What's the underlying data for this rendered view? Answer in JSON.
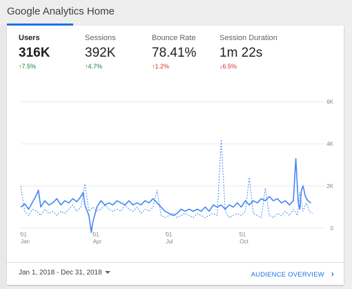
{
  "header": {
    "title": "Google Analytics Home"
  },
  "metrics": [
    {
      "label": "Users",
      "value": "316K",
      "change": "7.5%",
      "direction": "up",
      "color": "#188038",
      "active": true
    },
    {
      "label": "Sessions",
      "value": "392K",
      "change": "4.7%",
      "direction": "up",
      "color": "#188038",
      "active": false
    },
    {
      "label": "Bounce Rate",
      "value": "78.41%",
      "change": "1.2%",
      "direction": "up",
      "color": "#d93025",
      "active": false
    },
    {
      "label": "Session Duration",
      "value": "1m 22s",
      "change": "6.5%",
      "direction": "down",
      "color": "#d93025",
      "active": false
    }
  ],
  "footer": {
    "date_range": "Jan 1, 2018 - Dec 31, 2018",
    "overview_link": "AUDIENCE OVERVIEW"
  },
  "chart_data": {
    "type": "line",
    "x_ticks": [
      {
        "day": "01",
        "month": "Jan",
        "index": 0
      },
      {
        "day": "01",
        "month": "Apr",
        "index": 90
      },
      {
        "day": "01",
        "month": "Jul",
        "index": 181
      },
      {
        "day": "01",
        "month": "Oct",
        "index": 273
      }
    ],
    "y_ticks": [
      "0",
      "2K",
      "4K",
      "6K"
    ],
    "ylim": [
      0,
      6000
    ],
    "xlim": [
      0,
      364
    ],
    "grid": true,
    "series": [
      {
        "style": "solid",
        "color": "#4285f4",
        "points": [
          [
            0,
            1000
          ],
          [
            5,
            1150
          ],
          [
            10,
            900
          ],
          [
            15,
            1250
          ],
          [
            20,
            1600
          ],
          [
            22,
            1800
          ],
          [
            25,
            1000
          ],
          [
            30,
            1300
          ],
          [
            35,
            1100
          ],
          [
            40,
            1200
          ],
          [
            45,
            1400
          ],
          [
            50,
            1100
          ],
          [
            55,
            1300
          ],
          [
            60,
            1200
          ],
          [
            65,
            1400
          ],
          [
            70,
            1250
          ],
          [
            75,
            1500
          ],
          [
            78,
            1700
          ],
          [
            80,
            1100
          ],
          [
            85,
            600
          ],
          [
            88,
            -200
          ],
          [
            90,
            300
          ],
          [
            95,
            1000
          ],
          [
            100,
            1300
          ],
          [
            105,
            1100
          ],
          [
            110,
            1200
          ],
          [
            115,
            1100
          ],
          [
            120,
            1300
          ],
          [
            125,
            1200
          ],
          [
            130,
            1100
          ],
          [
            135,
            1300
          ],
          [
            140,
            1100
          ],
          [
            145,
            1200
          ],
          [
            150,
            1100
          ],
          [
            155,
            1300
          ],
          [
            160,
            1200
          ],
          [
            165,
            1400
          ],
          [
            170,
            1200
          ],
          [
            175,
            1000
          ],
          [
            180,
            800
          ],
          [
            185,
            700
          ],
          [
            190,
            600
          ],
          [
            195,
            700
          ],
          [
            200,
            900
          ],
          [
            205,
            800
          ],
          [
            210,
            900
          ],
          [
            215,
            800
          ],
          [
            220,
            900
          ],
          [
            225,
            800
          ],
          [
            230,
            1000
          ],
          [
            235,
            800
          ],
          [
            240,
            1100
          ],
          [
            245,
            1000
          ],
          [
            250,
            1100
          ],
          [
            255,
            900
          ],
          [
            260,
            1100
          ],
          [
            265,
            1000
          ],
          [
            270,
            1200
          ],
          [
            275,
            1000
          ],
          [
            280,
            1300
          ],
          [
            285,
            1100
          ],
          [
            290,
            1300
          ],
          [
            295,
            1200
          ],
          [
            300,
            1400
          ],
          [
            305,
            1300
          ],
          [
            310,
            1500
          ],
          [
            315,
            1300
          ],
          [
            320,
            1400
          ],
          [
            325,
            1200
          ],
          [
            330,
            1300
          ],
          [
            335,
            1100
          ],
          [
            340,
            1300
          ],
          [
            343,
            3300
          ],
          [
            346,
            1200
          ],
          [
            348,
            900
          ],
          [
            350,
            1800
          ],
          [
            352,
            2000
          ],
          [
            355,
            1500
          ],
          [
            358,
            1300
          ],
          [
            362,
            1200
          ]
        ]
      },
      {
        "style": "dashed",
        "color": "#4285f4",
        "points": [
          [
            0,
            2000
          ],
          [
            5,
            800
          ],
          [
            10,
            600
          ],
          [
            15,
            900
          ],
          [
            20,
            800
          ],
          [
            25,
            600
          ],
          [
            30,
            900
          ],
          [
            35,
            700
          ],
          [
            40,
            800
          ],
          [
            45,
            600
          ],
          [
            50,
            800
          ],
          [
            55,
            700
          ],
          [
            60,
            900
          ],
          [
            65,
            1100
          ],
          [
            70,
            800
          ],
          [
            75,
            1000
          ],
          [
            80,
            2100
          ],
          [
            85,
            800
          ],
          [
            90,
            1000
          ],
          [
            95,
            800
          ],
          [
            100,
            900
          ],
          [
            105,
            1100
          ],
          [
            110,
            900
          ],
          [
            115,
            800
          ],
          [
            120,
            900
          ],
          [
            125,
            800
          ],
          [
            130,
            1100
          ],
          [
            135,
            900
          ],
          [
            140,
            800
          ],
          [
            145,
            1000
          ],
          [
            150,
            700
          ],
          [
            155,
            900
          ],
          [
            160,
            800
          ],
          [
            165,
            1000
          ],
          [
            170,
            1800
          ],
          [
            175,
            600
          ],
          [
            180,
            500
          ],
          [
            185,
            600
          ],
          [
            190,
            700
          ],
          [
            195,
            500
          ],
          [
            200,
            600
          ],
          [
            205,
            700
          ],
          [
            210,
            600
          ],
          [
            215,
            500
          ],
          [
            220,
            700
          ],
          [
            225,
            600
          ],
          [
            230,
            500
          ],
          [
            235,
            600
          ],
          [
            240,
            700
          ],
          [
            245,
            600
          ],
          [
            250,
            4200
          ],
          [
            255,
            800
          ],
          [
            260,
            500
          ],
          [
            265,
            600
          ],
          [
            270,
            700
          ],
          [
            275,
            600
          ],
          [
            280,
            800
          ],
          [
            285,
            2400
          ],
          [
            290,
            700
          ],
          [
            295,
            600
          ],
          [
            300,
            500
          ],
          [
            305,
            1900
          ],
          [
            310,
            600
          ],
          [
            315,
            500
          ],
          [
            320,
            700
          ],
          [
            325,
            600
          ],
          [
            330,
            800
          ],
          [
            335,
            600
          ],
          [
            340,
            900
          ],
          [
            345,
            600
          ],
          [
            348,
            1700
          ],
          [
            352,
            800
          ],
          [
            356,
            1200
          ],
          [
            360,
            800
          ],
          [
            364,
            700
          ]
        ]
      }
    ]
  }
}
